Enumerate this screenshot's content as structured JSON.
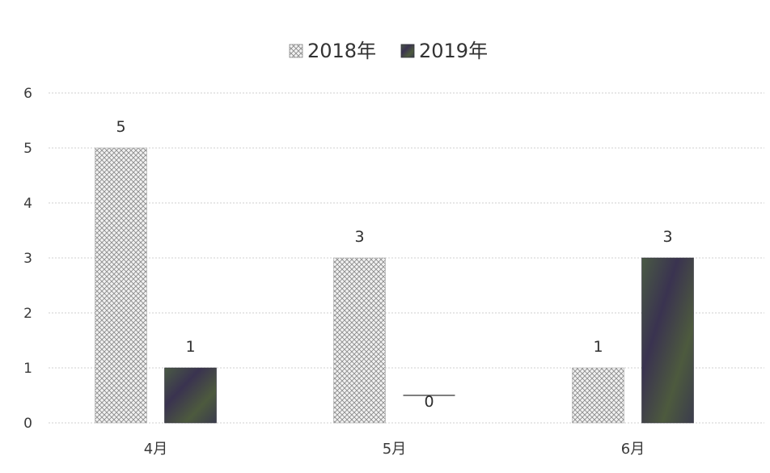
{
  "chart_data": {
    "type": "bar",
    "title": "",
    "categories": [
      "4月",
      "5月",
      "6月"
    ],
    "series": [
      {
        "name": "2018年",
        "values": [
          5,
          3,
          1
        ],
        "color": "#bdbdbd",
        "pattern": "crosshatch"
      },
      {
        "name": "2019年",
        "values": [
          1,
          0,
          3
        ],
        "color": "#3d4a3b",
        "pattern": "solid"
      }
    ],
    "ylim": [
      0,
      6
    ],
    "yticks": [
      0,
      1,
      2,
      3,
      4,
      5,
      6
    ],
    "grid": true,
    "legend_position": "top",
    "data_labels": true
  }
}
